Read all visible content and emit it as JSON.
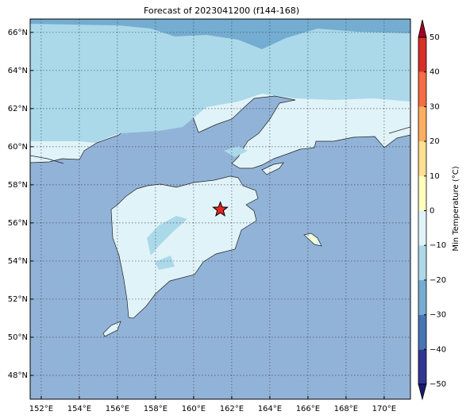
{
  "chart_data": {
    "type": "contour-map",
    "title": "Forecast of 2023041200 (f144-168)",
    "xlim": [
      151.42,
      171.38
    ],
    "ylim": [
      46.75,
      66.7
    ],
    "xticks": [
      {
        "value": 152,
        "label": "152°E"
      },
      {
        "value": 154,
        "label": "154°E"
      },
      {
        "value": 156,
        "label": "156°E"
      },
      {
        "value": 158,
        "label": "158°E"
      },
      {
        "value": 160,
        "label": "160°E"
      },
      {
        "value": 162,
        "label": "162°E"
      },
      {
        "value": 164,
        "label": "164°E"
      },
      {
        "value": 166,
        "label": "166°E"
      },
      {
        "value": 168,
        "label": "168°E"
      },
      {
        "value": 170,
        "label": "170°E"
      }
    ],
    "yticks": [
      {
        "value": 48,
        "label": "48°N"
      },
      {
        "value": 50,
        "label": "50°N"
      },
      {
        "value": 52,
        "label": "52°N"
      },
      {
        "value": 54,
        "label": "54°N"
      },
      {
        "value": 56,
        "label": "56°N"
      },
      {
        "value": 58,
        "label": "58°N"
      },
      {
        "value": 60,
        "label": "60°N"
      },
      {
        "value": 62,
        "label": "62°N"
      },
      {
        "value": 64,
        "label": "64°N"
      },
      {
        "value": 66,
        "label": "66°N"
      }
    ],
    "grid": true,
    "marker": {
      "x": 161.4,
      "y": 56.7,
      "color": "#e8251f"
    },
    "colorbar": {
      "label": "Min Temperature (°C)",
      "lim": [
        -50,
        50
      ],
      "ticks": [
        {
          "value": -50,
          "label": "−50"
        },
        {
          "value": -40,
          "label": "−40"
        },
        {
          "value": -30,
          "label": "−30"
        },
        {
          "value": -20,
          "label": "−20"
        },
        {
          "value": -10,
          "label": "−10"
        },
        0,
        10,
        20,
        30,
        40,
        50
      ],
      "colors": [
        "#313695",
        "#4575b4",
        "#74add1",
        "#abd9e9",
        "#e0f3f8",
        "#ffffbf",
        "#fee090",
        "#fdae61",
        "#f46d43",
        "#d73027"
      ],
      "under_color": "#1a1c6e",
      "over_color": "#a50026"
    }
  }
}
